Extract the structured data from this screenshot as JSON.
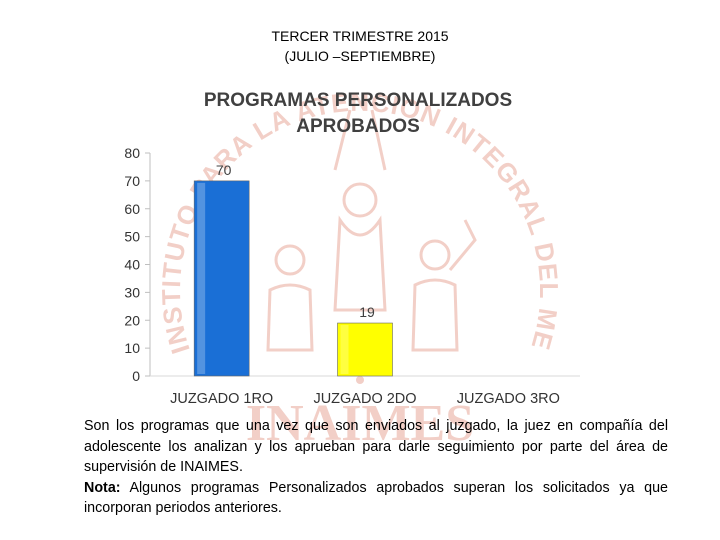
{
  "header": {
    "line1": "TERCER TRIMESTRE 2015",
    "line2": "(JULIO –SEPTIEMBRE)"
  },
  "watermark": {
    "arc_text": "INSTITUTO PARA LA ATENCION INTEGRAL DEL MENOR DEL ESTADO DE SINALOA",
    "logo_text": "INAIMES",
    "color": "#e8a89a"
  },
  "chart_data": {
    "type": "bar",
    "title_line1": "PROGRAMAS PERSONALIZADOS",
    "title_line2": "APROBADOS",
    "categories": [
      "JUZGADO 1RO",
      "JUZGADO 2DO",
      "JUZGADO 3RO"
    ],
    "values": [
      70,
      19,
      null
    ],
    "data_labels": [
      "70",
      "19",
      ""
    ],
    "colors": [
      "#1a6fd6",
      "#ffff00",
      "#cccccc"
    ],
    "ylim": [
      0,
      80
    ],
    "yticks": [
      0,
      10,
      20,
      30,
      40,
      50,
      60,
      70,
      80
    ],
    "grid": false
  },
  "note": {
    "paragraph": "Son los programas que una vez que son enviados al juzgado, la juez en compañía del adolescente los analizan y los aprueban para darle seguimiento por parte del área de supervisión de INAIMES.",
    "note_label": "Nota:",
    "note_text": " Algunos programas Personalizados aprobados superan los solicitados ya que incorporan periodos anteriores."
  }
}
